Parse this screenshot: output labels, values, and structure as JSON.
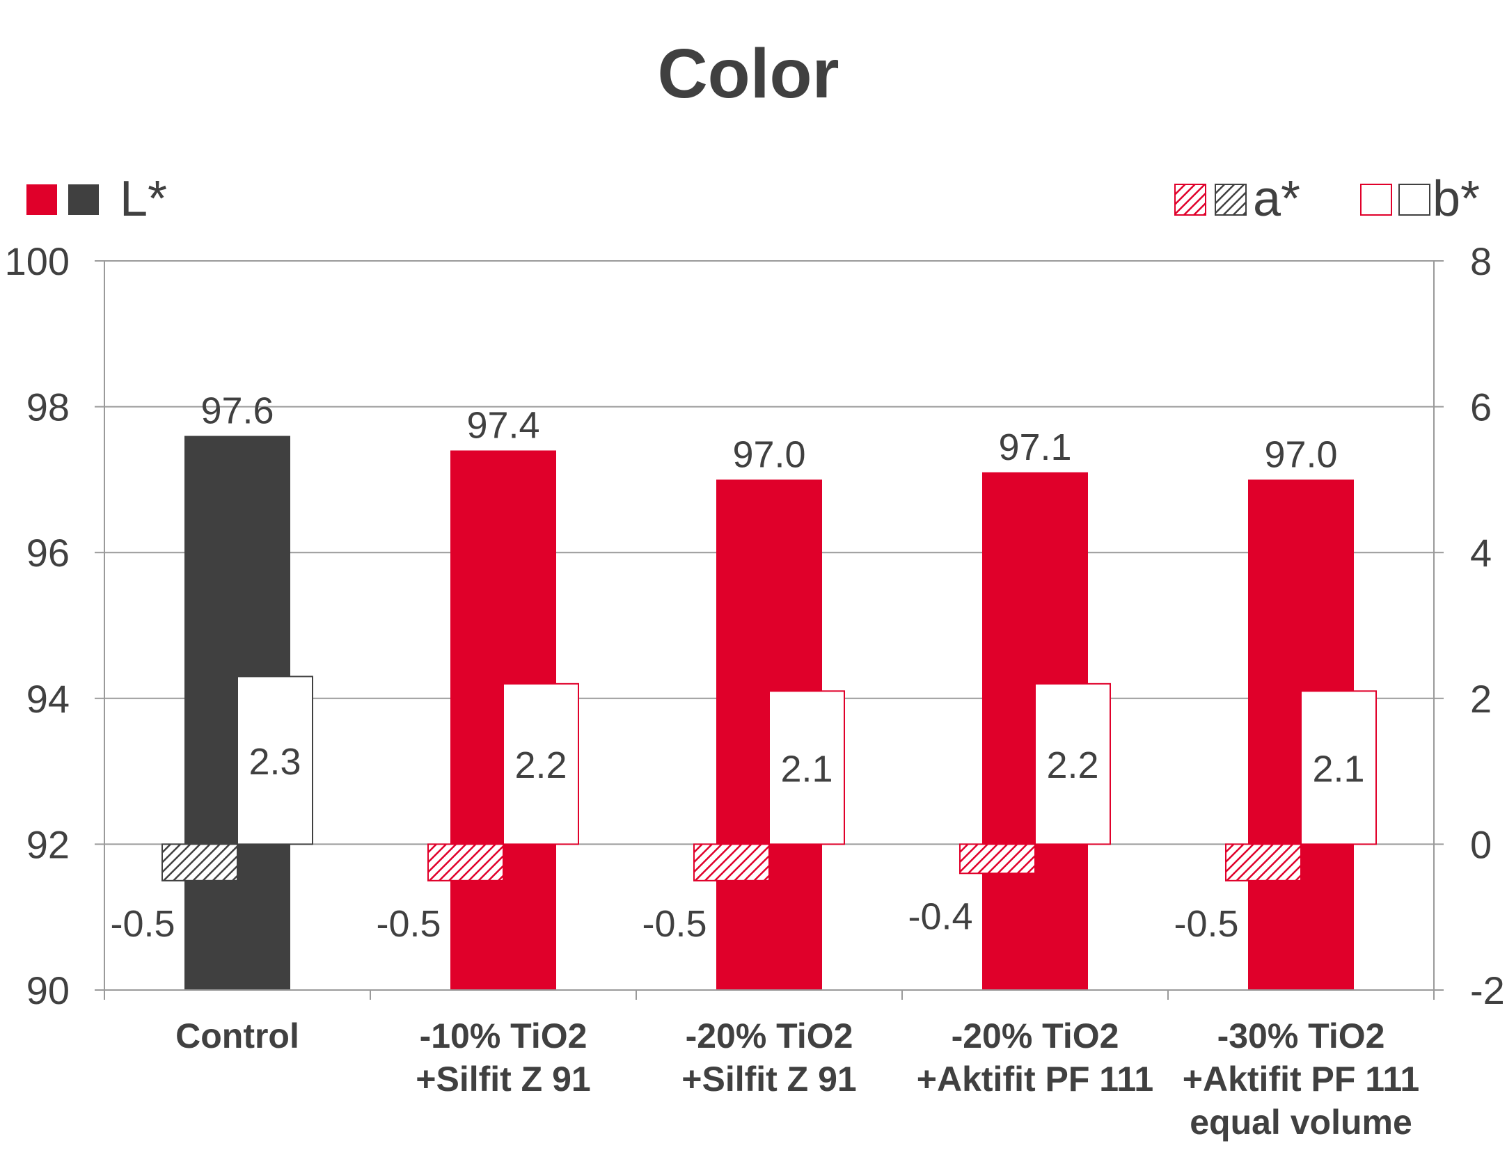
{
  "chart_data": {
    "type": "bar",
    "title": "Color",
    "categories": [
      [
        "Control"
      ],
      [
        "-10% TiO2",
        "+Silfit Z 91"
      ],
      [
        "-20% TiO2",
        "+Silfit Z 91"
      ],
      [
        "-20% TiO2",
        "+Aktifit PF 111"
      ],
      [
        "-30% TiO2",
        "+Aktifit PF 111",
        "equal volume"
      ]
    ],
    "series": [
      {
        "name": "L*",
        "axis": "left",
        "style": "solid",
        "values": [
          97.6,
          97.4,
          97.0,
          97.1,
          97.0
        ],
        "labels": [
          "97.6",
          "97.4",
          "97.0",
          "97.1",
          "97.0"
        ]
      },
      {
        "name": "a*",
        "axis": "right",
        "style": "hatched",
        "values": [
          -0.5,
          -0.5,
          -0.5,
          -0.4,
          -0.5
        ],
        "labels": [
          "-0.5",
          "-0.5",
          "-0.5",
          "-0.4",
          "-0.5"
        ]
      },
      {
        "name": "b*",
        "axis": "right",
        "style": "outline",
        "values": [
          2.3,
          2.2,
          2.1,
          2.2,
          2.1
        ],
        "labels": [
          "2.3",
          "2.2",
          "2.1",
          "2.2",
          "2.1"
        ]
      }
    ],
    "y_left": {
      "min": 90,
      "max": 100,
      "ticks": [
        "90",
        "92",
        "94",
        "96",
        "98",
        "100"
      ]
    },
    "y_right": {
      "min": -2,
      "max": 8,
      "ticks": [
        "-2",
        "0",
        "2",
        "4",
        "6",
        "8"
      ]
    },
    "bar_colors": [
      "#404040",
      "#e0002a",
      "#e0002a",
      "#e0002a",
      "#e0002a"
    ],
    "legend": {
      "l_label": "L*",
      "a_label": "a*",
      "b_label": "b*",
      "placement": "top"
    },
    "grid": true
  },
  "colors": {
    "red": "#e0002a",
    "dark": "#404040",
    "axis": "#9a9a9a",
    "text": "#404040"
  }
}
